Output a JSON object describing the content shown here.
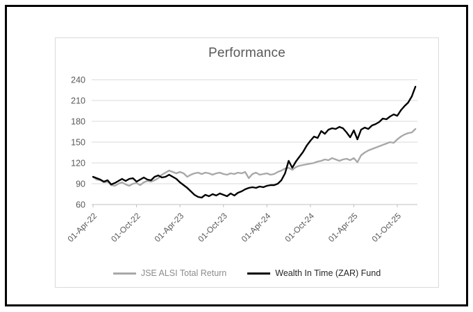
{
  "colors": {
    "frame_border": "#000000",
    "card_border": "#d9d9d9",
    "gridline": "#d9d9d9",
    "axis_line": "#bfbfbf",
    "axis_text": "#595959",
    "title_text": "#595959",
    "series_gray": "#a8a8a8",
    "series_black": "#000000"
  },
  "chart_data": {
    "type": "line",
    "title": "Performance",
    "xlabel": "",
    "ylabel": "",
    "grid": true,
    "legend_position": "bottom",
    "ylim": [
      60,
      248
    ],
    "y_ticks": [
      60,
      90,
      120,
      150,
      180,
      210,
      240
    ],
    "x_tick_labels": [
      "01-Apr-22",
      "01-Oct-22",
      "01-Apr-23",
      "01-Oct-23",
      "01-Apr-24",
      "01-Oct-24",
      "01-Apr-25",
      "01-Oct-25"
    ],
    "x_tick_indices": [
      0,
      12,
      24,
      36,
      48,
      60,
      72,
      84
    ],
    "x_unit": "semi-monthly points from 01-Apr-2022 to mid-Dec-2025 (index 0 = 01-Apr-22, 2 points per month)",
    "series": [
      {
        "name": "JSE ALSI Total Return",
        "color": "#a8a8a8",
        "label_color": "#8c8c8c",
        "stroke_width": 2.4,
        "values": [
          100,
          96,
          95,
          92,
          93,
          88,
          87,
          90,
          92,
          89,
          87,
          90,
          91,
          88,
          92,
          94,
          93,
          95,
          98,
          103,
          106,
          109,
          107,
          105,
          107,
          105,
          100,
          103,
          105,
          106,
          104,
          106,
          105,
          103,
          105,
          106,
          104,
          103,
          105,
          104,
          106,
          105,
          107,
          98,
          104,
          106,
          103,
          104,
          105,
          103,
          104,
          107,
          109,
          112,
          113,
          110,
          114,
          116,
          117,
          118,
          119,
          120,
          122,
          123,
          125,
          124,
          127,
          125,
          123,
          125,
          126,
          124,
          127,
          121,
          131,
          135,
          138,
          140,
          142,
          144,
          146,
          148,
          150,
          149,
          154,
          158,
          161,
          163,
          164,
          169
        ]
      },
      {
        "name": "Wealth In Time (ZAR) Fund",
        "color": "#000000",
        "label_color": "#262626",
        "stroke_width": 2.4,
        "values": [
          100,
          98,
          96,
          93,
          95,
          89,
          91,
          94,
          97,
          94,
          97,
          98,
          93,
          96,
          99,
          96,
          95,
          100,
          102,
          99,
          100,
          103,
          100,
          97,
          92,
          88,
          84,
          79,
          74,
          71,
          70,
          74,
          72,
          75,
          73,
          76,
          74,
          72,
          76,
          73,
          77,
          79,
          82,
          84,
          85,
          84,
          86,
          85,
          87,
          88,
          88,
          90,
          95,
          105,
          123,
          113,
          122,
          129,
          136,
          145,
          152,
          158,
          156,
          166,
          162,
          168,
          170,
          169,
          172,
          170,
          164,
          157,
          167,
          154,
          168,
          171,
          169,
          174,
          176,
          179,
          184,
          183,
          187,
          190,
          188,
          196,
          202,
          207,
          216,
          230
        ]
      }
    ]
  }
}
